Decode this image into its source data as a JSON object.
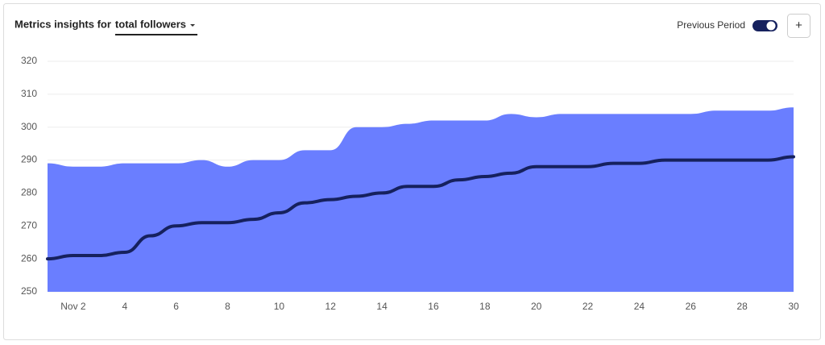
{
  "header": {
    "title": "Metrics insights for",
    "metric": "total followers"
  },
  "toggle": {
    "label": "Previous Period",
    "on": true
  },
  "add_button": "+",
  "chart_data": {
    "type": "area-line",
    "x": [
      1,
      2,
      3,
      4,
      5,
      6,
      7,
      8,
      9,
      10,
      11,
      12,
      13,
      14,
      15,
      16,
      17,
      18,
      19,
      20,
      21,
      22,
      23,
      24,
      25,
      26,
      27,
      28,
      29,
      30
    ],
    "series": [
      {
        "color": "#6a7eff",
        "values": [
          289,
          288,
          288,
          289,
          289,
          289,
          290,
          288,
          290,
          290,
          293,
          293,
          300,
          300,
          301,
          302,
          302,
          302,
          304,
          303,
          304,
          304,
          304,
          304,
          304,
          304,
          305,
          305,
          305,
          306
        ]
      },
      {
        "color": "#16215e",
        "values": [
          260,
          261,
          261,
          262,
          267,
          270,
          271,
          271,
          272,
          274,
          277,
          278,
          279,
          280,
          282,
          282,
          284,
          285,
          286,
          288,
          288,
          288,
          289,
          289,
          290,
          290,
          290,
          290,
          290,
          291
        ]
      }
    ],
    "xlim": [
      1,
      30
    ],
    "xticks": [
      {
        "value": 2,
        "label": "Nov 2"
      },
      4,
      6,
      8,
      10,
      12,
      14,
      16,
      18,
      20,
      22,
      24,
      26,
      28,
      30
    ],
    "ylim": [
      250,
      320
    ],
    "yticks": [
      250,
      260,
      270,
      280,
      290,
      300,
      310,
      320
    ],
    "grid": true
  }
}
